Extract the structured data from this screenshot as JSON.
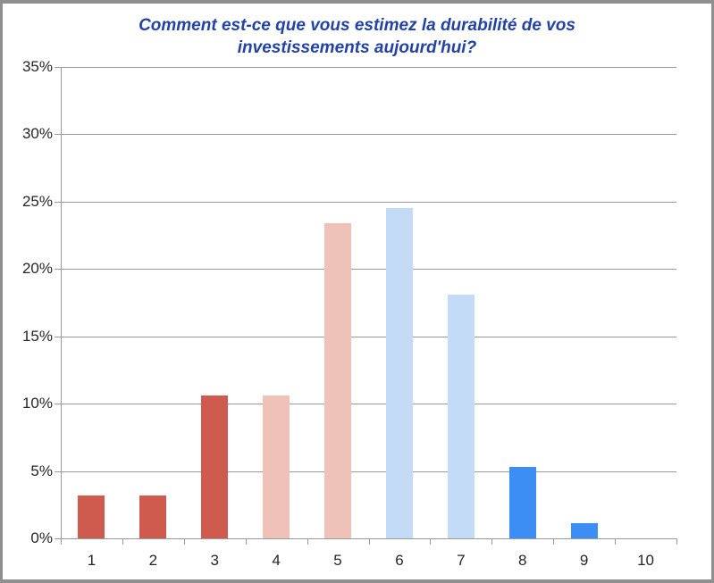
{
  "chart_data": {
    "type": "bar",
    "title": "Comment est-ce que vous estimez la durabilité de vos investissements aujourd'hui?",
    "categories": [
      "1",
      "2",
      "3",
      "4",
      "5",
      "6",
      "7",
      "8",
      "9",
      "10"
    ],
    "values": [
      3.2,
      3.2,
      10.6,
      10.6,
      23.4,
      24.5,
      18.1,
      5.3,
      1.1,
      0
    ],
    "bar_colors": [
      "#CE5B4D",
      "#CE5B4D",
      "#CE5B4D",
      "#EFC2B8",
      "#EFC2B8",
      "#C3DBF6",
      "#C3DBF6",
      "#3D8EF4",
      "#3D8EF4",
      "#3D8EF4"
    ],
    "xlabel": "",
    "ylabel": "",
    "ylim": [
      0,
      35
    ],
    "ytick_step": 5,
    "ytick_labels": [
      "0%",
      "5%",
      "10%",
      "15%",
      "20%",
      "25%",
      "30%",
      "35%"
    ],
    "grid": true,
    "legend": false,
    "colors": {
      "title": "#2243A5",
      "axis": "#9A9A9A",
      "tick_labels": "#262626",
      "frame_border": "#8F8F8F",
      "background": "#FFFFFF"
    }
  }
}
